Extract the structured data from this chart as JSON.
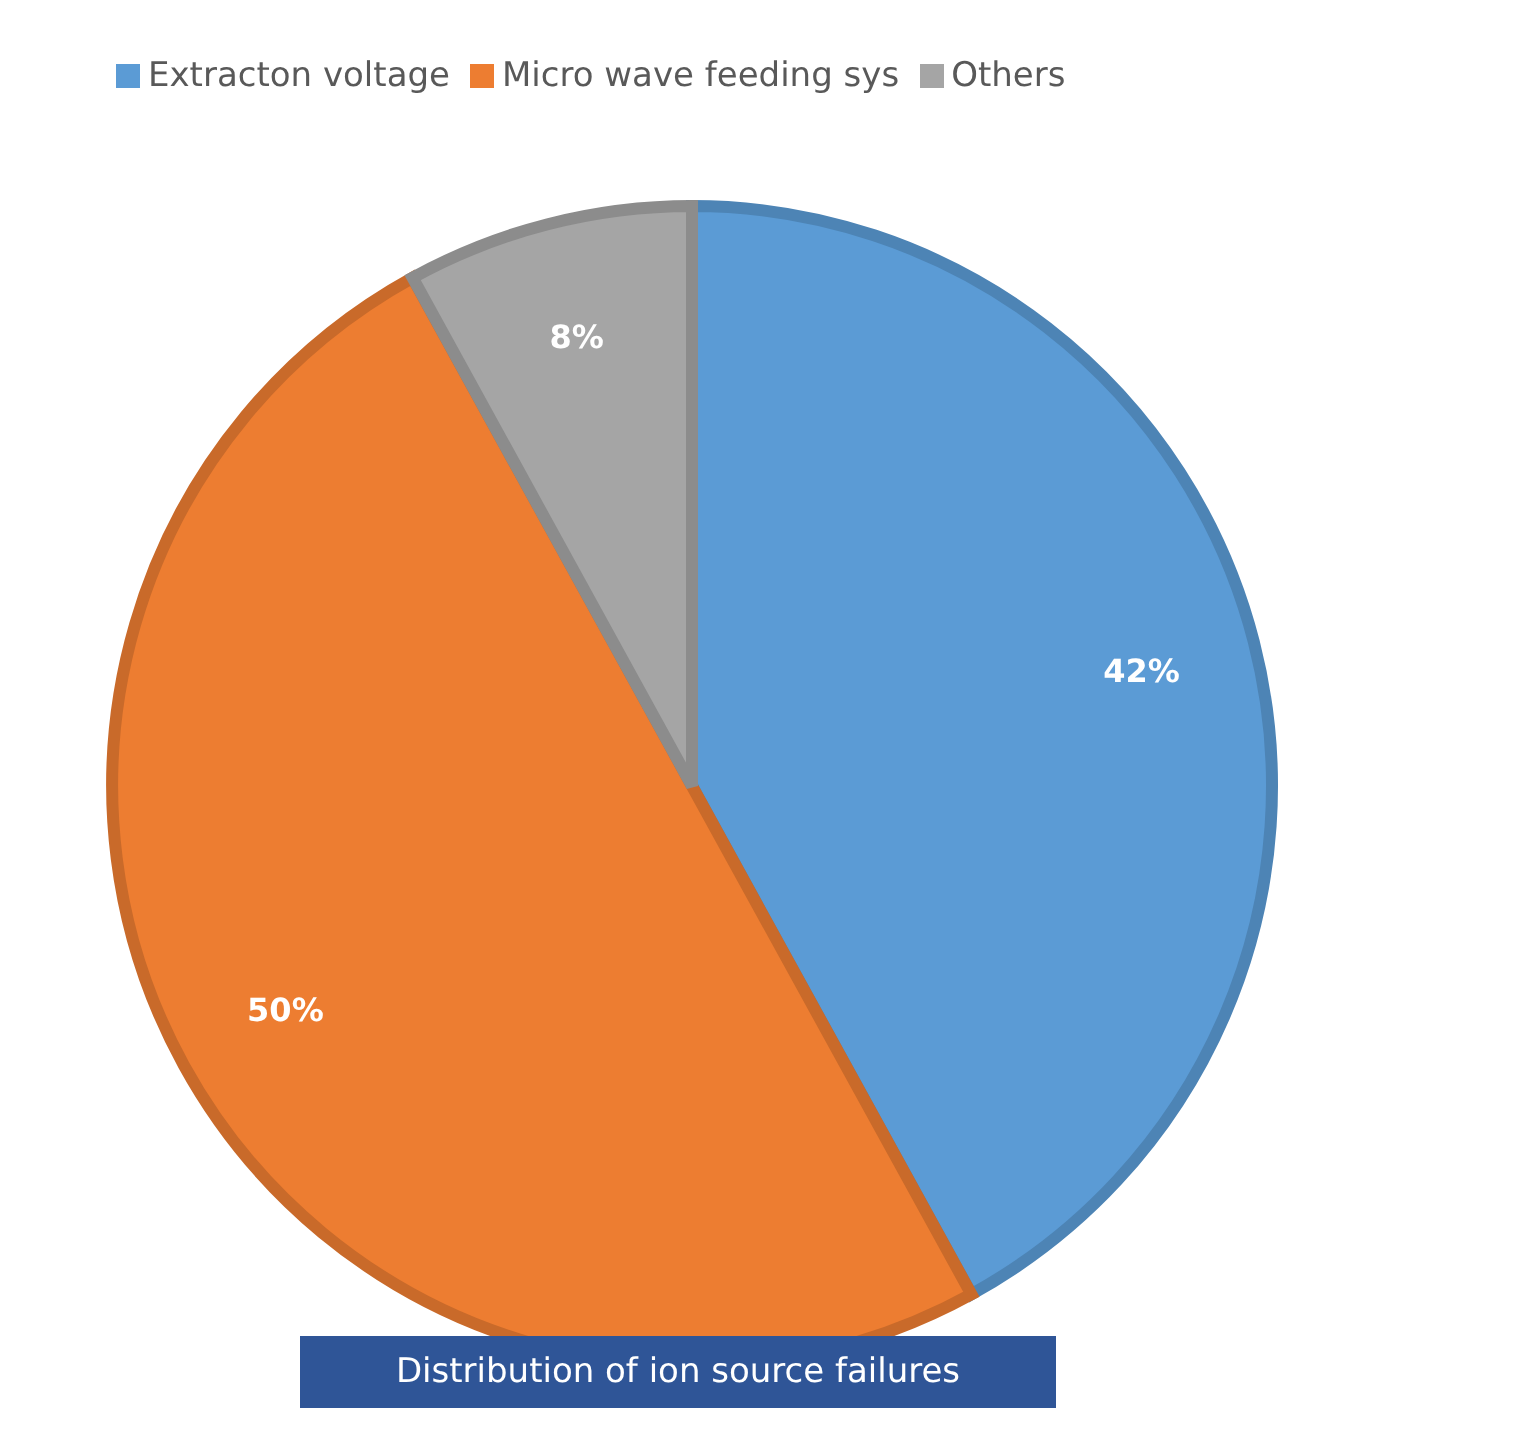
{
  "chart_data": {
    "type": "pie",
    "categories": [
      "Extracton voltage",
      "Micro wave feeding sys",
      "Others"
    ],
    "values": [
      42,
      50,
      8
    ],
    "colors": [
      "#5b9bd5",
      "#ed7d31",
      "#a5a5a5"
    ],
    "value_labels": [
      "42%",
      "50%",
      "8%"
    ],
    "legend": "top",
    "annotations": [
      "Distribution of ion source failures"
    ]
  }
}
